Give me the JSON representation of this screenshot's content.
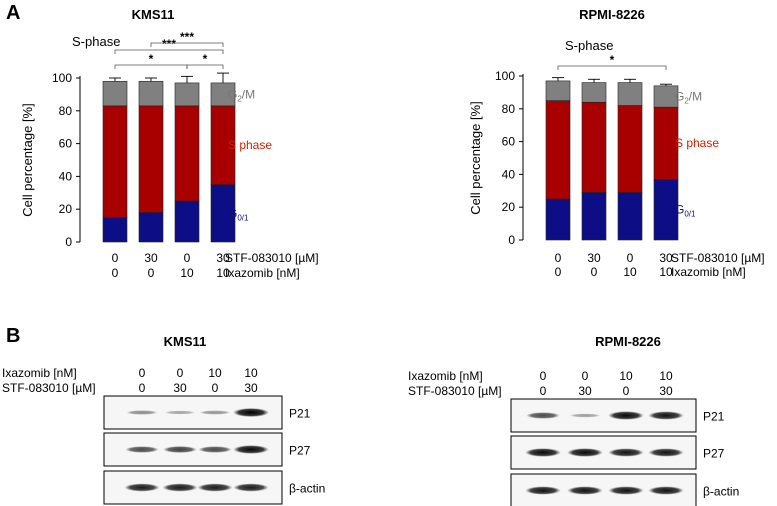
{
  "panel_a_letter": "A",
  "panel_b_letter": "B",
  "chart_data": [
    {
      "type": "bar",
      "stacked": true,
      "title": "KMS11",
      "subtitle": "S-phase",
      "xlabel": "",
      "ylabel": "Cell percentage   [%]",
      "ylim": [
        0,
        100
      ],
      "yticks": [
        0,
        20,
        40,
        60,
        80,
        100
      ],
      "categories": [
        "0|0",
        "30|0",
        "0|10",
        "30|10"
      ],
      "treatment_rows": [
        {
          "label": "STF-083010 [µM]",
          "values": [
            "0",
            "30",
            "0",
            "30"
          ]
        },
        {
          "label": "Ixazomib [nM]",
          "values": [
            "0",
            "0",
            "10",
            "10"
          ]
        }
      ],
      "series": [
        {
          "name": "G0/1",
          "label_main": "G",
          "label_sub": "0/1",
          "color": "#0d0d85",
          "values": [
            15,
            18,
            25,
            35
          ],
          "errors": [
            1.5,
            1.5,
            2,
            4
          ]
        },
        {
          "name": "S phase",
          "label_main": "S phase",
          "label_sub": "",
          "color": "#a80000",
          "values": [
            68,
            65,
            58,
            48
          ],
          "errors": [
            1,
            1,
            1.5,
            3
          ]
        },
        {
          "name": "G2/M",
          "label_main": "G",
          "label_sub": "2",
          "label_tail": "/M",
          "color": "#808080",
          "values": [
            15,
            15,
            14,
            14
          ],
          "errors": [
            2,
            2,
            4,
            6
          ]
        }
      ],
      "significance": [
        {
          "from": 0,
          "to": 2,
          "label": "*"
        },
        {
          "from": 2,
          "to": 3,
          "label": "*"
        },
        {
          "from": 0,
          "to": 3,
          "label": "***"
        },
        {
          "from": 1,
          "to": 3,
          "label": "***"
        }
      ]
    },
    {
      "type": "bar",
      "stacked": true,
      "title": "RPMI-8226",
      "subtitle": "S-phase",
      "xlabel": "",
      "ylabel": "Cell percentage   [%]",
      "ylim": [
        0,
        100
      ],
      "yticks": [
        0,
        20,
        40,
        60,
        80,
        100
      ],
      "categories": [
        "0|0",
        "30|0",
        "0|10",
        "30|10"
      ],
      "treatment_rows": [
        {
          "label": "STF-083010 [µM]",
          "values": [
            "0",
            "30",
            "0",
            "30"
          ]
        },
        {
          "label": "Ixazomib [nM]",
          "values": [
            "0",
            "0",
            "10",
            "10"
          ]
        }
      ],
      "series": [
        {
          "name": "G0/1",
          "label_main": "G",
          "label_sub": "0/1",
          "color": "#0d0d85",
          "values": [
            25,
            29,
            29,
            37
          ],
          "errors": [
            5,
            4,
            4,
            3
          ]
        },
        {
          "name": "S phase",
          "label_main": "S phase",
          "label_sub": "",
          "color": "#a80000",
          "values": [
            60,
            55,
            53,
            44
          ],
          "errors": [
            5,
            4,
            3,
            2
          ]
        },
        {
          "name": "G2/M",
          "label_main": "G",
          "label_sub": "2",
          "label_tail": "/M",
          "color": "#808080",
          "values": [
            12,
            12,
            14,
            13
          ],
          "errors": [
            2,
            2,
            2,
            1
          ]
        }
      ],
      "significance": [
        {
          "from": 0,
          "to": 3,
          "label": "*"
        }
      ]
    }
  ],
  "western_blots": [
    {
      "title": "KMS11",
      "rows": [
        {
          "label": "Ixazomib [nM]",
          "values": [
            "0",
            "0",
            "10",
            "10"
          ]
        },
        {
          "label": "STF-083010 [µM]",
          "values": [
            "0",
            "30",
            "0",
            "30"
          ]
        }
      ],
      "blots": [
        {
          "label": "P21",
          "intensities": [
            0.25,
            0.12,
            0.2,
            1.0
          ]
        },
        {
          "label": "P27",
          "intensities": [
            0.6,
            0.65,
            0.6,
            0.95
          ]
        },
        {
          "label": "β-actin",
          "intensities": [
            0.85,
            0.85,
            0.85,
            0.85
          ]
        }
      ]
    },
    {
      "title": "RPMI-8226",
      "rows": [
        {
          "label": "Ixazomib [nM]",
          "values": [
            "0",
            "0",
            "10",
            "10"
          ]
        },
        {
          "label": "STF-083010 [µM]",
          "values": [
            "0",
            "30",
            "0",
            "30"
          ]
        }
      ],
      "blots": [
        {
          "label": "P21",
          "intensities": [
            0.6,
            0.15,
            0.95,
            0.9
          ]
        },
        {
          "label": "P27",
          "intensities": [
            0.95,
            0.95,
            0.9,
            0.9
          ]
        },
        {
          "label": "β-actin",
          "intensities": [
            0.9,
            0.9,
            0.9,
            0.9
          ]
        }
      ]
    }
  ]
}
